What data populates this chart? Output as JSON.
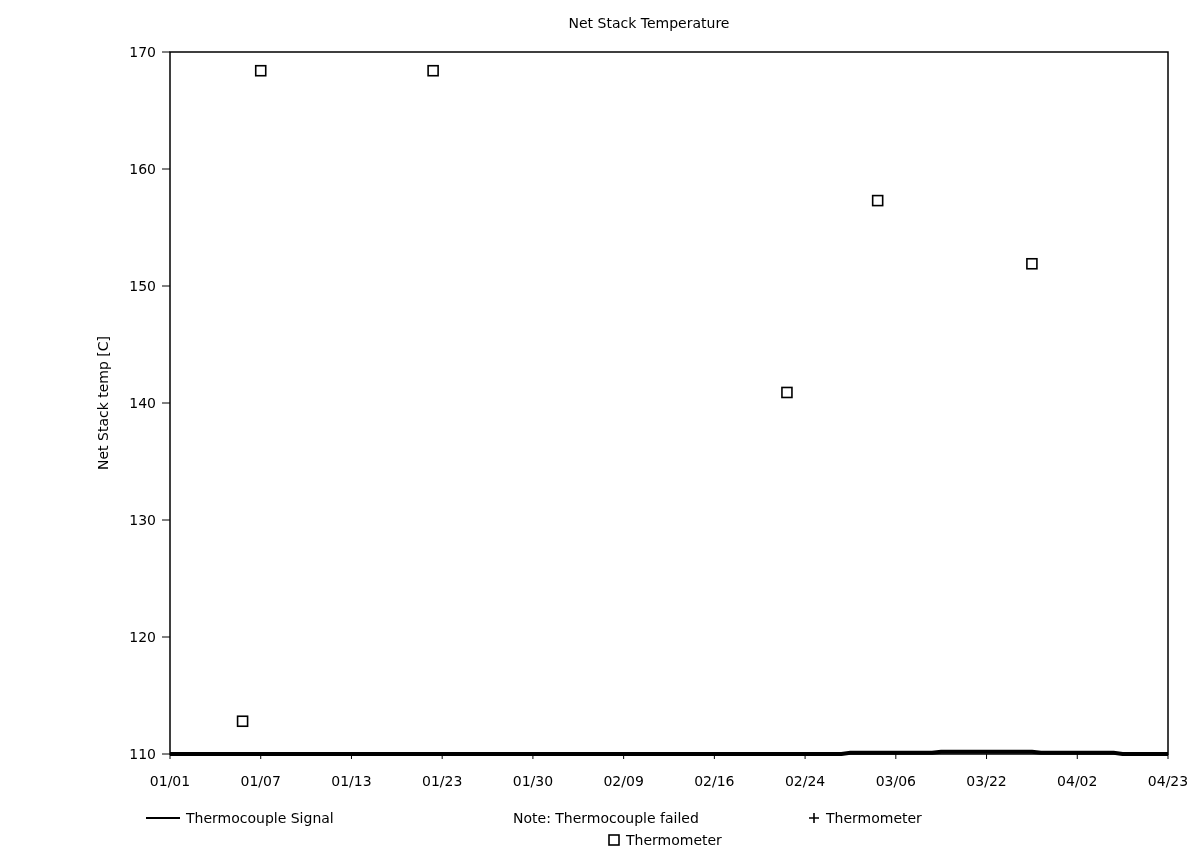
{
  "chart_data": {
    "type": "scatter",
    "title": "Net Stack Temperature",
    "ylabel": "Net Stack temp [C]",
    "categories": [
      "01/01",
      null,
      null,
      null,
      null,
      null,
      null,
      null,
      null,
      null,
      "01/07",
      null,
      null,
      null,
      null,
      null,
      null,
      null,
      null,
      null,
      "01/13",
      null,
      null,
      null,
      null,
      null,
      null,
      null,
      null,
      null,
      "01/23",
      null,
      null,
      null,
      null,
      null,
      null,
      null,
      null,
      null,
      "01/30",
      null,
      null,
      null,
      null,
      null,
      null,
      null,
      null,
      null,
      "02/09",
      null,
      null,
      null,
      null,
      null,
      null,
      null,
      null,
      null,
      "02/16",
      null,
      null,
      null,
      null,
      null,
      null,
      null,
      null,
      null,
      "02/24",
      null,
      null,
      null,
      null,
      null,
      null,
      null,
      null,
      null,
      "03/06",
      null,
      null,
      null,
      null,
      null,
      null,
      null,
      null,
      null,
      "03/22",
      null,
      null,
      null,
      null,
      null,
      null,
      null,
      null,
      null,
      "04/02",
      null,
      null,
      null,
      null,
      null,
      null,
      null,
      null,
      null,
      "04/23"
    ],
    "ylim": [
      110,
      170
    ],
    "yticks": [
      110,
      120,
      130,
      140,
      150,
      160,
      170
    ],
    "grid": false,
    "legend": "bottom",
    "annotations": [
      "Note: Thermocouple failed"
    ],
    "series": [
      {
        "name": "Thermocouple Signal",
        "type": "line",
        "color": "#000000",
        "marker": "none",
        "values": [
          110,
          110,
          110,
          110,
          110,
          110,
          110,
          110,
          110,
          110,
          110,
          110,
          110,
          110,
          110,
          110,
          110,
          110,
          110,
          110,
          110,
          110,
          110,
          110,
          110,
          110,
          110,
          110,
          110,
          110,
          110,
          110,
          110,
          110,
          110,
          110,
          110,
          110,
          110,
          110,
          110,
          110,
          110,
          110,
          110,
          110,
          110,
          110,
          110,
          110,
          110,
          110,
          110,
          110,
          110,
          110,
          110,
          110,
          110,
          110,
          110,
          110,
          110,
          110,
          110,
          110,
          110,
          110,
          110,
          110,
          110,
          110,
          110,
          110,
          110,
          110.1,
          110.1,
          110.1,
          110.1,
          110.1,
          110.1,
          110.1,
          110.1,
          110.1,
          110.1,
          110.2,
          110.2,
          110.2,
          110.2,
          110.2,
          110.2,
          110.2,
          110.2,
          110.2,
          110.2,
          110.2,
          110.1,
          110.1,
          110.1,
          110.1,
          110.1,
          110.1,
          110.1,
          110.1,
          110.1,
          110,
          110,
          110,
          110,
          110,
          110
        ]
      },
      {
        "name": "Thermometer",
        "color": "#000000",
        "marker": "cross",
        "values": [
          null,
          null,
          null,
          null,
          null,
          null,
          null,
          null,
          null,
          null,
          null,
          null,
          null,
          null,
          null,
          null,
          null,
          null,
          null,
          null,
          null,
          null,
          null,
          null,
          null,
          null,
          null,
          null,
          null,
          null,
          null,
          null,
          null,
          null,
          null,
          null,
          null,
          null,
          null,
          null,
          null,
          null,
          null,
          null,
          null,
          null,
          null,
          null,
          null,
          null,
          null,
          null,
          null,
          null,
          null,
          null,
          null,
          null,
          null,
          null,
          null,
          null,
          null,
          null,
          null,
          null,
          null,
          null,
          null,
          null,
          null,
          null,
          null,
          null,
          null,
          null,
          null,
          null,
          null,
          null,
          null,
          null,
          null,
          null,
          null,
          null,
          null,
          null,
          null,
          null,
          null,
          null,
          null,
          null,
          null,
          null,
          null,
          null,
          null,
          null,
          null,
          null,
          null,
          null,
          null,
          null,
          null,
          null,
          null,
          null,
          null
        ]
      },
      {
        "name": "Thermometer",
        "color": "#000000",
        "marker": "square",
        "values": [
          null,
          null,
          null,
          null,
          null,
          null,
          null,
          null,
          112.8,
          null,
          168.4,
          null,
          null,
          null,
          null,
          null,
          null,
          null,
          null,
          null,
          null,
          null,
          null,
          null,
          null,
          null,
          null,
          null,
          null,
          168.4,
          null,
          null,
          null,
          null,
          null,
          null,
          null,
          null,
          null,
          null,
          null,
          null,
          null,
          null,
          null,
          null,
          null,
          null,
          null,
          null,
          null,
          null,
          null,
          null,
          null,
          null,
          null,
          null,
          null,
          null,
          null,
          null,
          null,
          null,
          null,
          null,
          null,
          null,
          140.9,
          null,
          null,
          null,
          null,
          null,
          null,
          null,
          null,
          null,
          157.3,
          null,
          null,
          null,
          null,
          null,
          null,
          null,
          null,
          null,
          null,
          null,
          null,
          null,
          null,
          null,
          null,
          151.9,
          null,
          null,
          null,
          null,
          null,
          null,
          null,
          null,
          null,
          null,
          null,
          null,
          null,
          null,
          null
        ]
      }
    ]
  }
}
